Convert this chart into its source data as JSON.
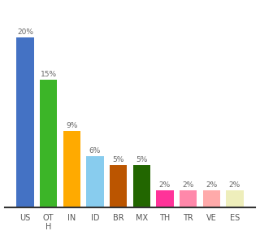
{
  "categories": [
    "US",
    "OT\nH",
    "IN",
    "ID",
    "BR",
    "MX",
    "TH",
    "TR",
    "VE",
    "ES"
  ],
  "values": [
    20,
    15,
    9,
    6,
    5,
    5,
    2,
    2,
    2,
    2
  ],
  "bar_colors": [
    "#4472c4",
    "#3cb528",
    "#ffaa00",
    "#88ccee",
    "#bb5500",
    "#226600",
    "#ff3399",
    "#ff88aa",
    "#ffaaaa",
    "#eeeebb"
  ],
  "labels": [
    "20%",
    "15%",
    "9%",
    "6%",
    "5%",
    "5%",
    "2%",
    "2%",
    "2%",
    "2%"
  ],
  "ylim": [
    0,
    23
  ],
  "background_color": "#ffffff",
  "bar_width": 0.75
}
